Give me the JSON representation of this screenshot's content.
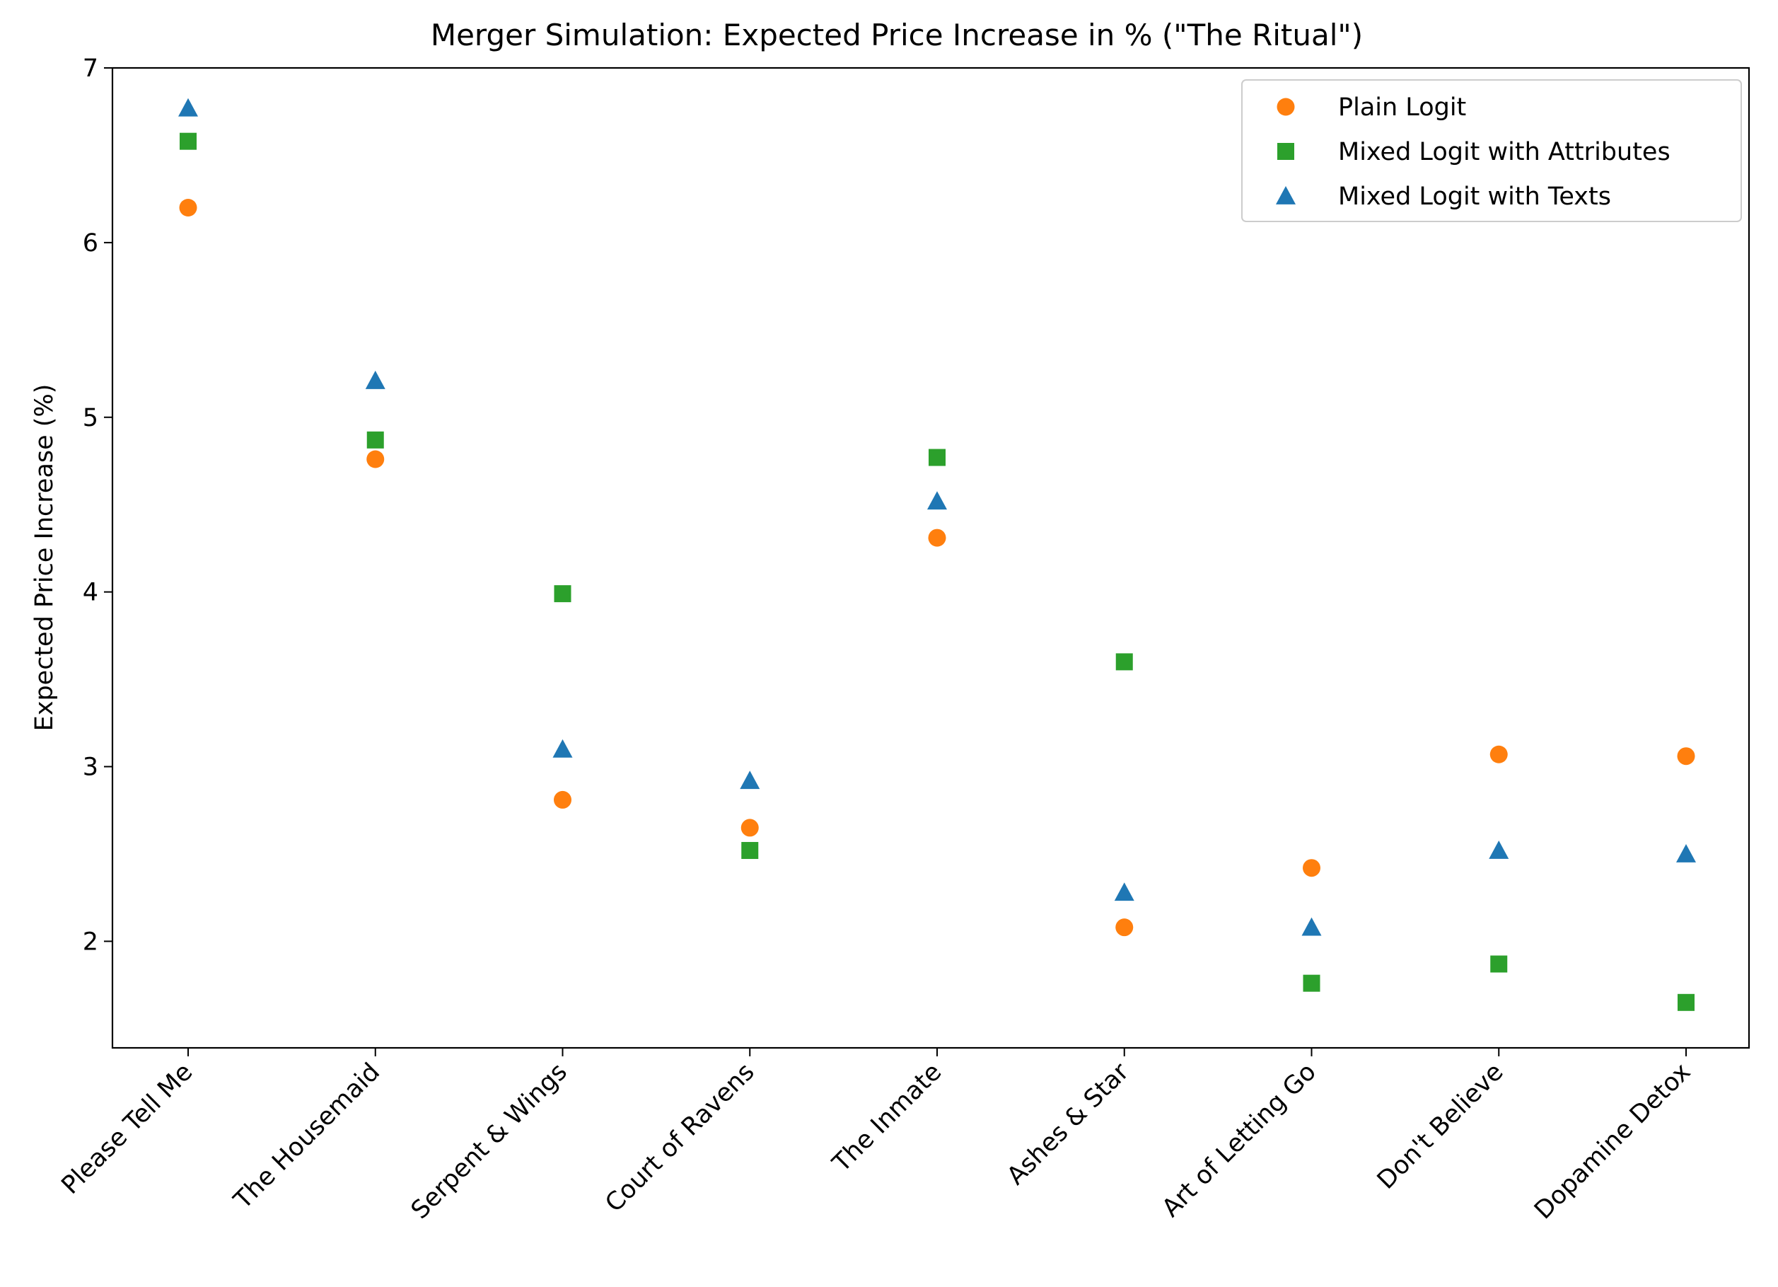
{
  "chart_data": {
    "type": "scatter",
    "title": "Merger Simulation: Expected Price Increase in % (\"The Ritual\")",
    "xlabel": "",
    "ylabel": "Expected Price Increase (%)",
    "ylim": [
      1.39,
      7.0
    ],
    "yticks": [
      "2",
      "3",
      "4",
      "5",
      "6",
      "7"
    ],
    "grid": false,
    "legend_position": "upper right",
    "categories": [
      "Please Tell Me",
      "The Housemaid",
      "Serpent & Wings",
      "Court of Ravens",
      "The Inmate",
      "Ashes & Star",
      "Art of Letting Go",
      "Don't Believe",
      "Dopamine Detox"
    ],
    "series": [
      {
        "name": "Plain Logit",
        "marker": "circle",
        "color": "#ff7f0e",
        "values": [
          6.2,
          4.76,
          2.81,
          2.65,
          4.31,
          2.08,
          2.42,
          3.07,
          3.06
        ]
      },
      {
        "name": "Mixed Logit with Attributes",
        "marker": "square",
        "color": "#2ca02c",
        "values": [
          6.58,
          4.87,
          3.99,
          2.52,
          4.77,
          3.6,
          1.76,
          1.87,
          1.65
        ]
      },
      {
        "name": "Mixed Logit with Texts",
        "marker": "triangle",
        "color": "#1f77b4",
        "values": [
          6.77,
          5.21,
          3.1,
          2.92,
          4.52,
          2.28,
          2.08,
          2.52,
          2.5
        ]
      }
    ]
  }
}
